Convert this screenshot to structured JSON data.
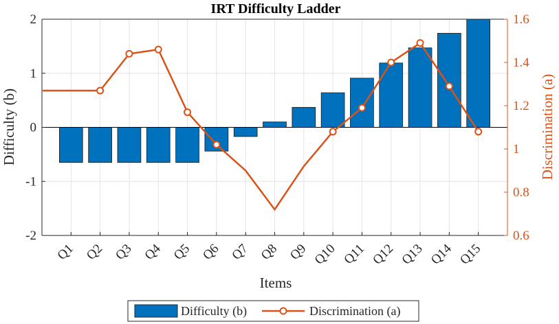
{
  "chart_data": {
    "type": "bar",
    "title": "IRT Difficulty Ladder",
    "xlabel": "Items",
    "ylabel": "Difficulty (b)",
    "y2label": "Discrimination (a)",
    "categories": [
      "Q1",
      "Q2",
      "Q3",
      "Q4",
      "Q5",
      "Q6",
      "Q7",
      "Q8",
      "Q9",
      "Q10",
      "Q11",
      "Q12",
      "Q13",
      "Q14",
      "Q15"
    ],
    "ylim": [
      -2,
      2
    ],
    "y2lim": [
      0.6,
      1.6
    ],
    "yticks": [
      "-2",
      "-1",
      "0",
      "1",
      "2"
    ],
    "y2ticks": [
      "0.6",
      "0.8",
      "1",
      "1.2",
      "1.4",
      "1.6"
    ],
    "grid": true,
    "legend_position": "bottom",
    "series": [
      {
        "name": "Difficulty (b)",
        "kind": "bar",
        "color": "#0072bd",
        "values": [
          -0.65,
          -0.65,
          -0.65,
          -0.65,
          -0.65,
          -0.44,
          -0.17,
          0.1,
          0.37,
          0.64,
          0.91,
          1.19,
          1.47,
          1.74,
          2.0
        ]
      },
      {
        "name": "Discrimination (a)",
        "kind": "line",
        "axis": "right",
        "color": "#d95319",
        "values": [
          1.27,
          1.27,
          1.44,
          1.46,
          1.17,
          1.02,
          0.9,
          0.72,
          0.92,
          1.08,
          1.19,
          1.4,
          1.49,
          1.29,
          1.08
        ],
        "markers": [
          false,
          true,
          true,
          true,
          true,
          true,
          false,
          false,
          false,
          true,
          true,
          true,
          true,
          true,
          true
        ]
      }
    ]
  }
}
